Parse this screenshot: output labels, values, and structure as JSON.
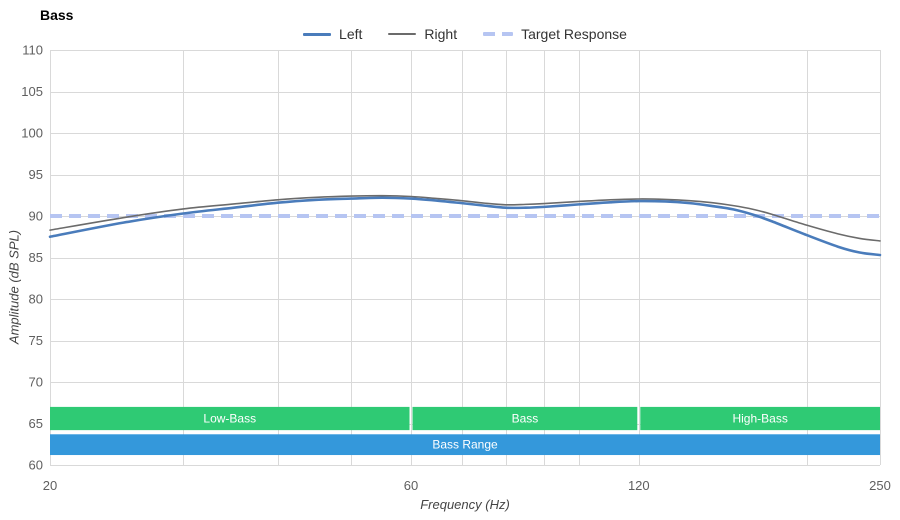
{
  "title": "Bass",
  "legend": {
    "items": [
      {
        "label": "Left",
        "color": "#4a7cbb",
        "style": "solid",
        "thickness": 3
      },
      {
        "label": "Right",
        "color": "#6b6b6b",
        "style": "solid",
        "thickness": 2
      },
      {
        "label": "Target Response",
        "color": "#b6c5f2",
        "style": "dashed",
        "thickness": 4
      }
    ]
  },
  "chart_data": {
    "type": "line",
    "title": "Bass",
    "xlabel": "Frequency (Hz)",
    "ylabel": "Amplitude (dB SPL)",
    "x_scale": "log",
    "xlim": [
      20,
      250
    ],
    "ylim": [
      60,
      110
    ],
    "y_ticks": [
      60,
      65,
      70,
      75,
      80,
      85,
      90,
      95,
      100,
      105,
      110
    ],
    "x_gridlines": [
      20,
      30,
      40,
      50,
      60,
      70,
      80,
      90,
      100,
      120,
      200,
      250
    ],
    "x_tick_labels": [
      20,
      60,
      120,
      250
    ],
    "grid": true,
    "legend_position": "top-center",
    "x": [
      20,
      25,
      30,
      35,
      40,
      45,
      50,
      55,
      60,
      65,
      70,
      75,
      80,
      85,
      90,
      100,
      110,
      120,
      130,
      140,
      150,
      160,
      170,
      180,
      200,
      220,
      235,
      250
    ],
    "series": [
      {
        "name": "Left",
        "color": "#4a7cbb",
        "width": 2.6,
        "values": [
          87.5,
          89.2,
          90.3,
          91.0,
          91.6,
          91.95,
          92.1,
          92.2,
          92.1,
          91.85,
          91.55,
          91.25,
          91.0,
          91.0,
          91.1,
          91.4,
          91.65,
          91.8,
          91.75,
          91.55,
          91.2,
          90.8,
          90.15,
          89.35,
          87.7,
          86.3,
          85.6,
          85.3
        ]
      },
      {
        "name": "Right",
        "color": "#6b6b6b",
        "width": 1.6,
        "values": [
          88.3,
          89.8,
          90.85,
          91.45,
          91.95,
          92.25,
          92.4,
          92.45,
          92.35,
          92.1,
          91.85,
          91.55,
          91.35,
          91.4,
          91.5,
          91.75,
          91.95,
          92.05,
          92.0,
          91.85,
          91.6,
          91.25,
          90.8,
          90.2,
          88.9,
          87.85,
          87.3,
          87.0
        ]
      }
    ],
    "target_response": {
      "label": "Target Response",
      "value": 90,
      "color": "#b6c5f2",
      "dash": [
        12,
        7
      ],
      "width": 4
    },
    "bands": {
      "green": {
        "color": "#2fca74",
        "range_db": [
          64.2,
          67.0
        ],
        "segments": [
          {
            "label": "Low-Bass",
            "from": 20,
            "to": 60
          },
          {
            "label": "Bass",
            "from": 60,
            "to": 120
          },
          {
            "label": "High-Bass",
            "from": 120,
            "to": 250
          }
        ]
      },
      "blue": {
        "color": "#3498db",
        "range_db": [
          61.2,
          63.7
        ],
        "label": "Bass Range",
        "from": 20,
        "to": 250
      }
    },
    "colors": {
      "grid": "#d9d9d9",
      "tick_text": "#5f5f5f",
      "band_text": "#ffffff"
    }
  }
}
